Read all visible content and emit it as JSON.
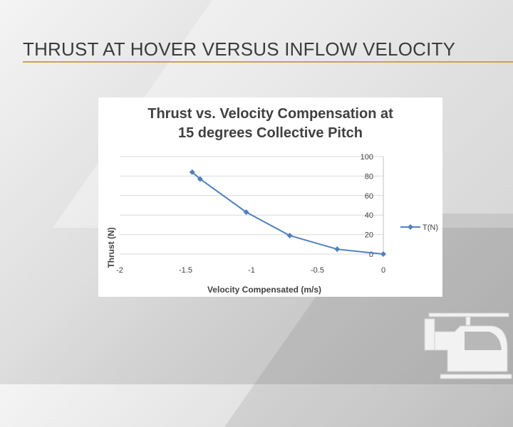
{
  "slide": {
    "title": "THRUST AT HOVER VERSUS INFLOW VELOCITY",
    "accent_color": "#c9a05c"
  },
  "chart_data": {
    "type": "line",
    "title_line1": "Thrust vs. Velocity Compensation at",
    "title_line2": "15 degrees Collective Pitch",
    "xlabel": "Velocity Compensated (m/s)",
    "ylabel": "Thrust (N)",
    "xlim": [
      -2,
      0
    ],
    "ylim": [
      0,
      100
    ],
    "x_ticks": [
      -2,
      -1.5,
      -1,
      -0.5,
      0
    ],
    "x_tick_labels": [
      "-2",
      "-1.5",
      "-1",
      "-0.5",
      "0"
    ],
    "y_ticks": [
      0,
      20,
      40,
      60,
      80,
      100
    ],
    "y_tick_labels": [
      "0",
      "20",
      "40",
      "60",
      "80",
      "100"
    ],
    "grid": true,
    "legend_position": "right",
    "series": [
      {
        "name": "T(N)",
        "color": "#4f81bd",
        "x": [
          -1.45,
          -1.39,
          -1.04,
          -0.71,
          -0.35,
          0.0
        ],
        "y": [
          84,
          77,
          43,
          19,
          5,
          0
        ]
      }
    ]
  }
}
